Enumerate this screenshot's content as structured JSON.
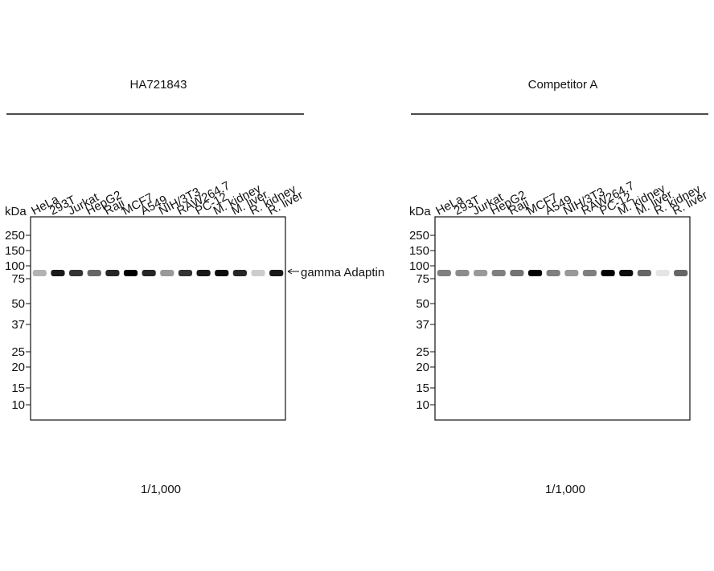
{
  "panels": [
    {
      "title": "HA721843",
      "lanes": [
        "HeLa",
        "293T",
        "Jurkat",
        "HepG2",
        "Raji",
        "MCF7",
        "A549",
        "NIH/3T3",
        "RAW264.7",
        "PC-12",
        "M. kidney",
        "M. liver",
        "R. kidney",
        "R. liver"
      ],
      "unit": "kDa",
      "markers": [
        250,
        150,
        100,
        75,
        50,
        37,
        25,
        20,
        15,
        10
      ],
      "band_label": "gamma Adaptin",
      "dilution": "1/1,000"
    },
    {
      "title": "Competitor A",
      "lanes": [
        "HeLa",
        "293T",
        "Jurkat",
        "HepG2",
        "Raji",
        "MCF7",
        "A549",
        "NIH/3T3",
        "RAW264.7",
        "PC-12",
        "M. kidney",
        "M. liver",
        "R. kidney",
        "R. liver"
      ],
      "unit": "kDa",
      "markers": [
        250,
        150,
        100,
        75,
        50,
        37,
        25,
        20,
        15,
        10
      ],
      "dilution": "1/1,000"
    }
  ]
}
